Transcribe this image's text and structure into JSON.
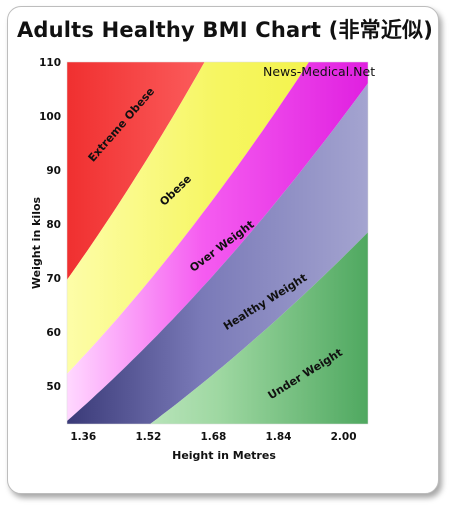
{
  "title": "Adults Healthy BMI Chart (非常近似)",
  "chart_data": {
    "type": "area",
    "title": "Adults Healthy BMI Chart (非常近似)",
    "watermark": "News-Medical.Net",
    "xlabel": "Height in Metres",
    "ylabel": "Weight in kilos",
    "x_ticks": [
      1.36,
      1.52,
      1.68,
      1.84,
      2.0
    ],
    "y_ticks": [
      50,
      60,
      70,
      80,
      90,
      100,
      110
    ],
    "x_tick_labels": [
      "1.36",
      "1.52",
      "1.68",
      "1.84",
      "2.00"
    ],
    "y_tick_labels": [
      "50",
      "60",
      "70",
      "80",
      "90",
      "100",
      "110"
    ],
    "xlim": [
      1.32,
      2.06
    ],
    "ylim": [
      43,
      110
    ],
    "zones": [
      {
        "name": "Under Weight",
        "bmi_min": 0,
        "bmi_max": 18.5,
        "color": "#5db36e"
      },
      {
        "name": "Healthy Weight",
        "bmi_min": 18.5,
        "bmi_max": 25,
        "color": "#5a5a9e"
      },
      {
        "name": "Over Weight",
        "bmi_min": 25,
        "bmi_max": 30,
        "color": "#f03ce8"
      },
      {
        "name": "Obese",
        "bmi_min": 30,
        "bmi_max": 40,
        "color": "#f5f55a"
      },
      {
        "name": "Extreme Obese",
        "bmi_min": 40,
        "bmi_max": 100,
        "color": "#f02a2a"
      }
    ]
  }
}
